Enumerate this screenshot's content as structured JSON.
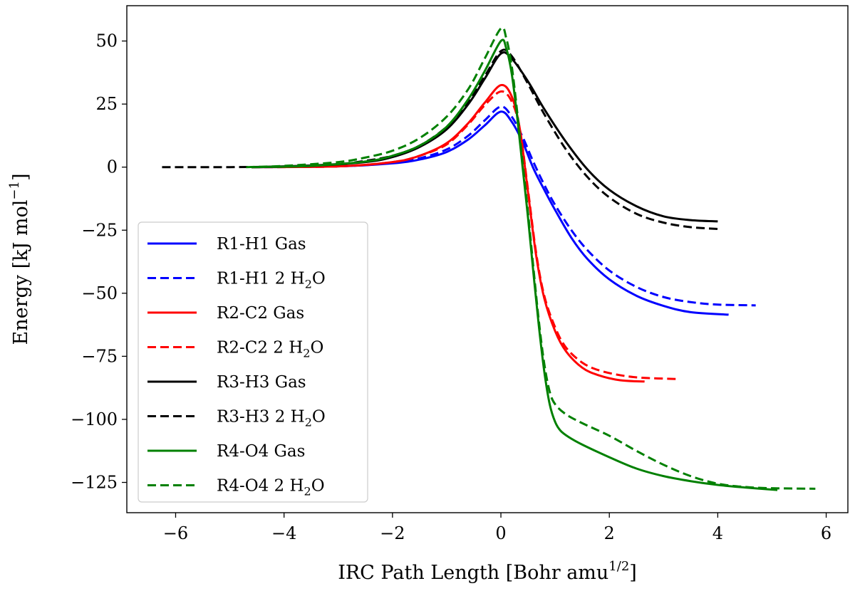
{
  "chart_data": {
    "type": "line",
    "title": "",
    "xlabel": "IRC Path Length [Bohr amu",
    "xlabel_sup": "1/2",
    "xlabel_end": "]",
    "ylabel": "Energy [kJ mol",
    "ylabel_sup": "−1",
    "ylabel_end": "]",
    "xlim": [
      -6.9,
      6.4
    ],
    "ylim": [
      -137,
      64
    ],
    "xticks": [
      -6,
      -4,
      -2,
      0,
      2,
      4,
      6
    ],
    "xtick_labels": [
      "−6",
      "−4",
      "−2",
      "0",
      "2",
      "4",
      "6"
    ],
    "yticks": [
      50,
      25,
      0,
      -25,
      -50,
      -75,
      -100,
      -125
    ],
    "ytick_labels": [
      "50",
      "25",
      "0",
      "−25",
      "−50",
      "−75",
      "−100",
      "−125"
    ],
    "grid": false,
    "legend_position": "lower-left",
    "series": [
      {
        "name": "R1-H1 Gas",
        "label_main": "R1-H1 Gas",
        "label_sub": "",
        "label_end": "",
        "color": "#0000ff",
        "dash": "solid",
        "x": [
          -4.6,
          -3.0,
          -2.0,
          -1.5,
          -1.0,
          -0.6,
          -0.3,
          0.0,
          0.2,
          0.4,
          0.6,
          0.8,
          1.0,
          1.3,
          1.6,
          2.0,
          2.5,
          3.0,
          3.5,
          4.2
        ],
        "y": [
          0,
          0.3,
          1.5,
          3.0,
          6.0,
          11.0,
          16.5,
          22.0,
          18.0,
          10.0,
          -0.5,
          -9.0,
          -17.0,
          -28.0,
          -36.5,
          -44.5,
          -51.0,
          -55.0,
          -57.5,
          -58.5
        ]
      },
      {
        "name": "R1-H1 2 H2O",
        "label_main": "R1-H1 2 H",
        "label_sub": "2",
        "label_end": "O",
        "color": "#0000ff",
        "dash": "dashed",
        "x": [
          -4.6,
          -3.0,
          -2.0,
          -1.5,
          -1.0,
          -0.6,
          -0.3,
          0.0,
          0.2,
          0.4,
          0.6,
          0.8,
          1.0,
          1.3,
          1.6,
          2.0,
          2.5,
          3.0,
          3.5,
          4.0,
          4.7
        ],
        "y": [
          0,
          0.3,
          1.7,
          3.5,
          7.0,
          12.5,
          18.5,
          24.0,
          20.0,
          12.0,
          2.0,
          -7.0,
          -15.0,
          -25.0,
          -33.0,
          -41.0,
          -47.5,
          -51.5,
          -53.5,
          -54.5,
          -54.8
        ]
      },
      {
        "name": "R2-C2 Gas",
        "label_main": "R2-C2 Gas",
        "label_sub": "",
        "label_end": "",
        "color": "#ff0000",
        "dash": "solid",
        "x": [
          -4.6,
          -3.0,
          -2.0,
          -1.5,
          -1.0,
          -0.6,
          -0.3,
          0.0,
          0.2,
          0.35,
          0.5,
          0.65,
          0.8,
          1.0,
          1.2,
          1.5,
          1.8,
          2.2,
          2.65
        ],
        "y": [
          0,
          0.3,
          2.0,
          4.5,
          9.5,
          17.5,
          25.5,
          32.5,
          28.0,
          15.0,
          -10.0,
          -35.0,
          -52.0,
          -65.0,
          -73.0,
          -79.5,
          -82.5,
          -84.5,
          -85.0
        ]
      },
      {
        "name": "R2-C2 2 H2O",
        "label_main": "R2-C2 2 H",
        "label_sub": "2",
        "label_end": "O",
        "color": "#ff0000",
        "dash": "dashed",
        "x": [
          -4.6,
          -3.0,
          -2.0,
          -1.5,
          -1.0,
          -0.6,
          -0.3,
          0.0,
          0.2,
          0.35,
          0.5,
          0.65,
          0.8,
          1.0,
          1.2,
          1.5,
          1.8,
          2.2,
          2.6,
          3.25
        ],
        "y": [
          0,
          0.3,
          2.0,
          4.5,
          9.0,
          17.0,
          24.5,
          30.0,
          26.0,
          15.0,
          -9.0,
          -34.0,
          -51.0,
          -63.5,
          -71.5,
          -77.5,
          -80.5,
          -82.5,
          -83.5,
          -84.0
        ]
      },
      {
        "name": "R3-H3 Gas",
        "label_main": "R3-H3 Gas",
        "label_sub": "",
        "label_end": "",
        "color": "#000000",
        "dash": "solid",
        "x": [
          -4.6,
          -3.5,
          -2.5,
          -2.0,
          -1.5,
          -1.0,
          -0.6,
          -0.3,
          0.0,
          0.2,
          0.5,
          0.8,
          1.2,
          1.6,
          2.0,
          2.5,
          3.0,
          3.5,
          4.0
        ],
        "y": [
          0,
          0.5,
          2.0,
          4.0,
          8.0,
          15.0,
          25.0,
          35.0,
          45.0,
          43.0,
          34.0,
          23.0,
          10.0,
          -1.0,
          -9.0,
          -15.5,
          -19.5,
          -21.0,
          -21.5
        ]
      },
      {
        "name": "R3-H3 2 H2O",
        "label_main": "R3-H3 2 H",
        "label_sub": "2",
        "label_end": "O",
        "color": "#000000",
        "dash": "dashed",
        "x": [
          -6.25,
          -5.0,
          -4.0,
          -3.0,
          -2.5,
          -2.0,
          -1.5,
          -1.0,
          -0.6,
          -0.3,
          0.0,
          0.2,
          0.5,
          0.8,
          1.2,
          1.6,
          2.0,
          2.5,
          3.0,
          3.5,
          4.0
        ],
        "y": [
          0,
          0,
          0.3,
          1.2,
          2.5,
          4.5,
          8.5,
          16.0,
          26.0,
          36.0,
          46.0,
          44.0,
          33.0,
          21.0,
          7.0,
          -4.0,
          -12.0,
          -18.5,
          -22.0,
          -23.8,
          -24.5
        ]
      },
      {
        "name": "R4-O4 Gas",
        "label_main": "R4-O4 Gas",
        "label_sub": "",
        "label_end": "",
        "color": "#008000",
        "dash": "solid",
        "x": [
          -4.6,
          -3.5,
          -2.5,
          -2.0,
          -1.5,
          -1.0,
          -0.6,
          -0.3,
          0.0,
          0.1,
          0.2,
          0.3,
          0.4,
          0.5,
          0.6,
          0.7,
          0.8,
          0.9,
          1.0,
          1.1,
          1.25,
          1.5,
          2.0,
          2.5,
          3.0,
          3.5,
          4.0,
          4.5,
          5.1
        ],
        "y": [
          0,
          0.5,
          2.2,
          4.5,
          8.5,
          16.0,
          27.0,
          38.0,
          50.0,
          47.0,
          37.0,
          20.0,
          0.0,
          -20.0,
          -42.0,
          -63.0,
          -81.0,
          -94.0,
          -101.0,
          -104.5,
          -107.0,
          -110.0,
          -115.0,
          -119.5,
          -122.5,
          -124.5,
          -126.0,
          -127.0,
          -128.0
        ]
      },
      {
        "name": "R4-O4 2 H2O",
        "label_main": "R4-O4 2 H",
        "label_sub": "2",
        "label_end": "O",
        "color": "#008000",
        "dash": "dashed",
        "x": [
          -4.7,
          -4.0,
          -3.0,
          -2.5,
          -2.0,
          -1.5,
          -1.0,
          -0.6,
          -0.3,
          0.0,
          0.1,
          0.2,
          0.3,
          0.4,
          0.5,
          0.6,
          0.7,
          0.8,
          0.9,
          1.0,
          1.2,
          1.5,
          2.0,
          2.5,
          3.0,
          3.5,
          4.0,
          4.5,
          5.0,
          5.8
        ],
        "y": [
          0,
          0.5,
          2.0,
          3.8,
          6.5,
          11.5,
          20.0,
          31.0,
          43.0,
          55.0,
          51.0,
          40.0,
          22.0,
          2.0,
          -18.0,
          -40.0,
          -61.0,
          -78.0,
          -89.0,
          -94.0,
          -98.0,
          -101.5,
          -106.5,
          -112.5,
          -118.0,
          -122.5,
          -125.5,
          -126.8,
          -127.3,
          -127.5
        ]
      }
    ]
  }
}
